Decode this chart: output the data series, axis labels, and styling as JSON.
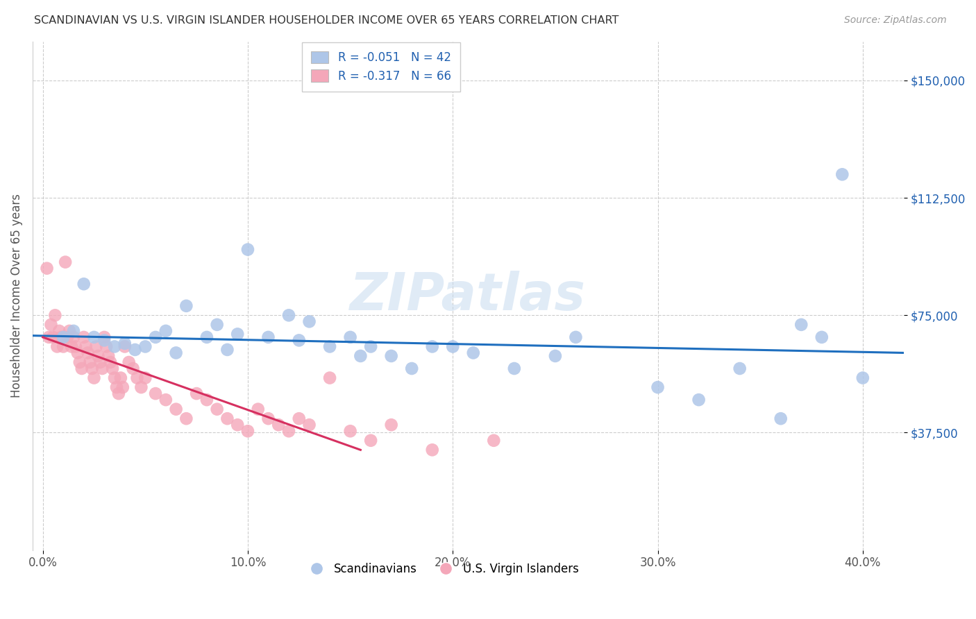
{
  "title": "SCANDINAVIAN VS U.S. VIRGIN ISLANDER HOUSEHOLDER INCOME OVER 65 YEARS CORRELATION CHART",
  "source": "Source: ZipAtlas.com",
  "ylabel": "Householder Income Over 65 years",
  "xlabel_ticks": [
    "0.0%",
    "10.0%",
    "20.0%",
    "30.0%",
    "40.0%"
  ],
  "xlabel_vals": [
    0.0,
    0.1,
    0.2,
    0.3,
    0.4
  ],
  "ytick_labels": [
    "$37,500",
    "$75,000",
    "$112,500",
    "$150,000"
  ],
  "ytick_vals": [
    37500,
    75000,
    112500,
    150000
  ],
  "ylim": [
    0,
    162500
  ],
  "xlim": [
    -0.005,
    0.42
  ],
  "legend_blue_label": "R = -0.051   N = 42",
  "legend_pink_label": "R = -0.317   N = 66",
  "legend_bottom_blue": "Scandinavians",
  "legend_bottom_pink": "U.S. Virgin Islanders",
  "blue_color": "#aec6e8",
  "pink_color": "#f4a7b9",
  "blue_line_color": "#1f6fbf",
  "pink_line_color": "#d63060",
  "watermark": "ZIPatlas",
  "blue_scatter_x": [
    0.01,
    0.015,
    0.02,
    0.025,
    0.03,
    0.035,
    0.04,
    0.045,
    0.05,
    0.055,
    0.06,
    0.065,
    0.07,
    0.08,
    0.085,
    0.09,
    0.095,
    0.1,
    0.11,
    0.12,
    0.125,
    0.13,
    0.14,
    0.15,
    0.155,
    0.16,
    0.17,
    0.18,
    0.19,
    0.2,
    0.21,
    0.23,
    0.25,
    0.26,
    0.3,
    0.32,
    0.34,
    0.36,
    0.37,
    0.38,
    0.39,
    0.4
  ],
  "blue_scatter_y": [
    68000,
    70000,
    85000,
    68000,
    67000,
    65000,
    66000,
    64000,
    65000,
    68000,
    70000,
    63000,
    78000,
    68000,
    72000,
    64000,
    69000,
    96000,
    68000,
    75000,
    67000,
    73000,
    65000,
    68000,
    62000,
    65000,
    62000,
    58000,
    65000,
    65000,
    63000,
    58000,
    62000,
    68000,
    52000,
    48000,
    58000,
    42000,
    72000,
    68000,
    120000,
    55000
  ],
  "pink_scatter_x": [
    0.002,
    0.003,
    0.004,
    0.005,
    0.006,
    0.007,
    0.008,
    0.009,
    0.01,
    0.011,
    0.012,
    0.013,
    0.014,
    0.015,
    0.016,
    0.017,
    0.018,
    0.019,
    0.02,
    0.021,
    0.022,
    0.023,
    0.024,
    0.025,
    0.026,
    0.027,
    0.028,
    0.029,
    0.03,
    0.031,
    0.032,
    0.033,
    0.034,
    0.035,
    0.036,
    0.037,
    0.038,
    0.039,
    0.04,
    0.042,
    0.044,
    0.046,
    0.048,
    0.05,
    0.055,
    0.06,
    0.065,
    0.07,
    0.075,
    0.08,
    0.085,
    0.09,
    0.095,
    0.1,
    0.105,
    0.11,
    0.115,
    0.12,
    0.125,
    0.13,
    0.14,
    0.15,
    0.16,
    0.17,
    0.19,
    0.22
  ],
  "pink_scatter_y": [
    90000,
    68000,
    72000,
    68000,
    75000,
    65000,
    70000,
    68000,
    65000,
    92000,
    68000,
    70000,
    65000,
    68000,
    65000,
    63000,
    60000,
    58000,
    68000,
    65000,
    63000,
    60000,
    58000,
    55000,
    65000,
    62000,
    60000,
    58000,
    68000,
    65000,
    62000,
    60000,
    58000,
    55000,
    52000,
    50000,
    55000,
    52000,
    65000,
    60000,
    58000,
    55000,
    52000,
    55000,
    50000,
    48000,
    45000,
    42000,
    50000,
    48000,
    45000,
    42000,
    40000,
    38000,
    45000,
    42000,
    40000,
    38000,
    42000,
    40000,
    55000,
    38000,
    35000,
    40000,
    32000,
    35000
  ],
  "blue_trend_x": [
    -0.005,
    0.42
  ],
  "blue_trend_y": [
    68500,
    63000
  ],
  "pink_trend_x": [
    0.0,
    0.155
  ],
  "pink_trend_y": [
    68000,
    32000
  ]
}
